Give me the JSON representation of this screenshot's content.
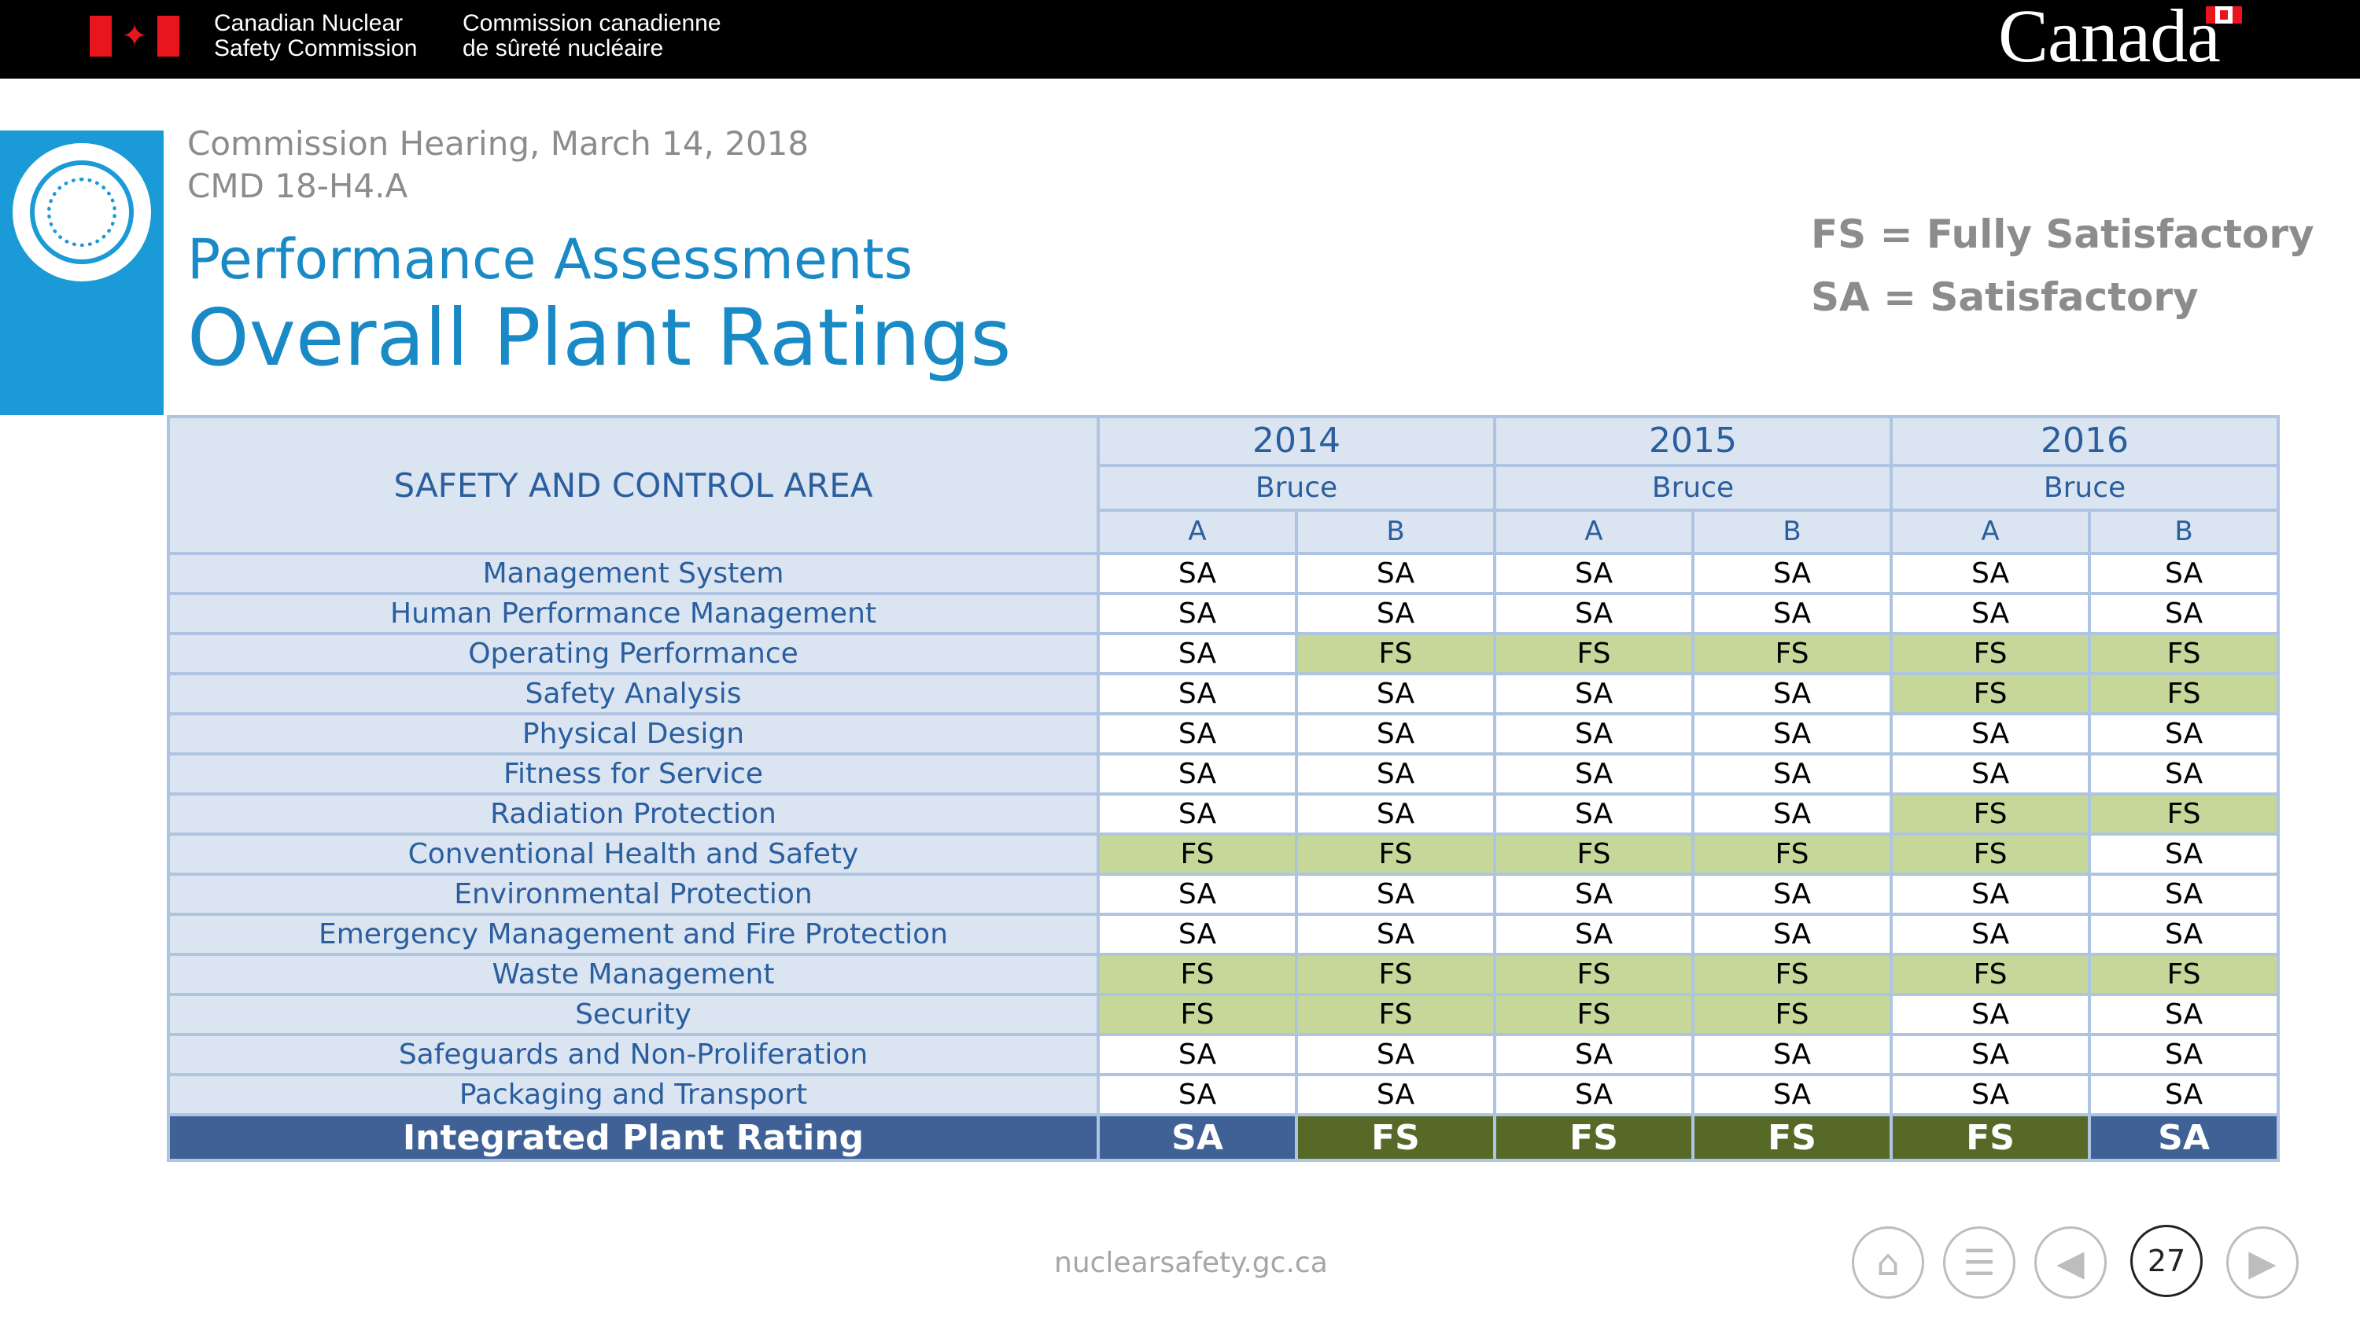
{
  "banner": {
    "org_en_line1": "Canadian Nuclear",
    "org_en_line2": "Safety Commission",
    "org_fr_line1": "Commission canadienne",
    "org_fr_line2": "de sûreté nucléaire",
    "wordmark": "Canada"
  },
  "header": {
    "hearing_line1": "Commission Hearing, March 14, 2018",
    "hearing_line2": "CMD 18-H4.A",
    "subtitle": "Performance Assessments",
    "title": "Overall Plant Ratings",
    "legend_fs": "FS = Fully Satisfactory",
    "legend_sa": "SA = Satisfactory"
  },
  "table": {
    "area_header": "SAFETY AND CONTROL AREA",
    "years": [
      "2014",
      "2015",
      "2016"
    ],
    "plants": [
      "Bruce",
      "Bruce",
      "Bruce"
    ],
    "units": [
      "A",
      "B",
      "A",
      "B",
      "A",
      "B"
    ],
    "rows": [
      {
        "area": "Management System",
        "ratings": [
          "SA",
          "SA",
          "SA",
          "SA",
          "SA",
          "SA"
        ]
      },
      {
        "area": "Human Performance  Management",
        "ratings": [
          "SA",
          "SA",
          "SA",
          "SA",
          "SA",
          "SA"
        ]
      },
      {
        "area": "Operating Performance",
        "ratings": [
          "SA",
          "FS",
          "FS",
          "FS",
          "FS",
          "FS"
        ]
      },
      {
        "area": "Safety Analysis",
        "ratings": [
          "SA",
          "SA",
          "SA",
          "SA",
          "FS",
          "FS"
        ]
      },
      {
        "area": "Physical Design",
        "ratings": [
          "SA",
          "SA",
          "SA",
          "SA",
          "SA",
          "SA"
        ]
      },
      {
        "area": "Fitness for Service",
        "ratings": [
          "SA",
          "SA",
          "SA",
          "SA",
          "SA",
          "SA"
        ]
      },
      {
        "area": "Radiation Protection",
        "ratings": [
          "SA",
          "SA",
          "SA",
          "SA",
          "FS",
          "FS"
        ]
      },
      {
        "area": "Conventional Health and Safety",
        "ratings": [
          "FS",
          "FS",
          "FS",
          "FS",
          "FS",
          "SA"
        ]
      },
      {
        "area": "Environmental Protection",
        "ratings": [
          "SA",
          "SA",
          "SA",
          "SA",
          "SA",
          "SA"
        ]
      },
      {
        "area": "Emergency Management and Fire Protection",
        "ratings": [
          "SA",
          "SA",
          "SA",
          "SA",
          "SA",
          "SA"
        ]
      },
      {
        "area": "Waste Management",
        "ratings": [
          "FS",
          "FS",
          "FS",
          "FS",
          "FS",
          "FS"
        ]
      },
      {
        "area": "Security",
        "ratings": [
          "FS",
          "FS",
          "FS",
          "FS",
          "SA",
          "SA"
        ]
      },
      {
        "area": "Safeguards and Non-Proliferation",
        "ratings": [
          "SA",
          "SA",
          "SA",
          "SA",
          "SA",
          "SA"
        ]
      },
      {
        "area": "Packaging and Transport",
        "ratings": [
          "SA",
          "SA",
          "SA",
          "SA",
          "SA",
          "SA"
        ]
      }
    ],
    "total": {
      "label": "Integrated Plant Rating",
      "ratings": [
        "SA",
        "FS",
        "FS",
        "FS",
        "FS",
        "SA"
      ]
    }
  },
  "colors": {
    "fs_fill": "#c5d89a",
    "total_sa": "#3f6196",
    "total_fs": "#566927",
    "accent_blue": "#1a9ad6"
  },
  "footer": {
    "url": "nuclearsafety.gc.ca",
    "page_number": "27",
    "nav": [
      "home-icon",
      "menu-icon",
      "previous-icon",
      "next-icon"
    ]
  }
}
